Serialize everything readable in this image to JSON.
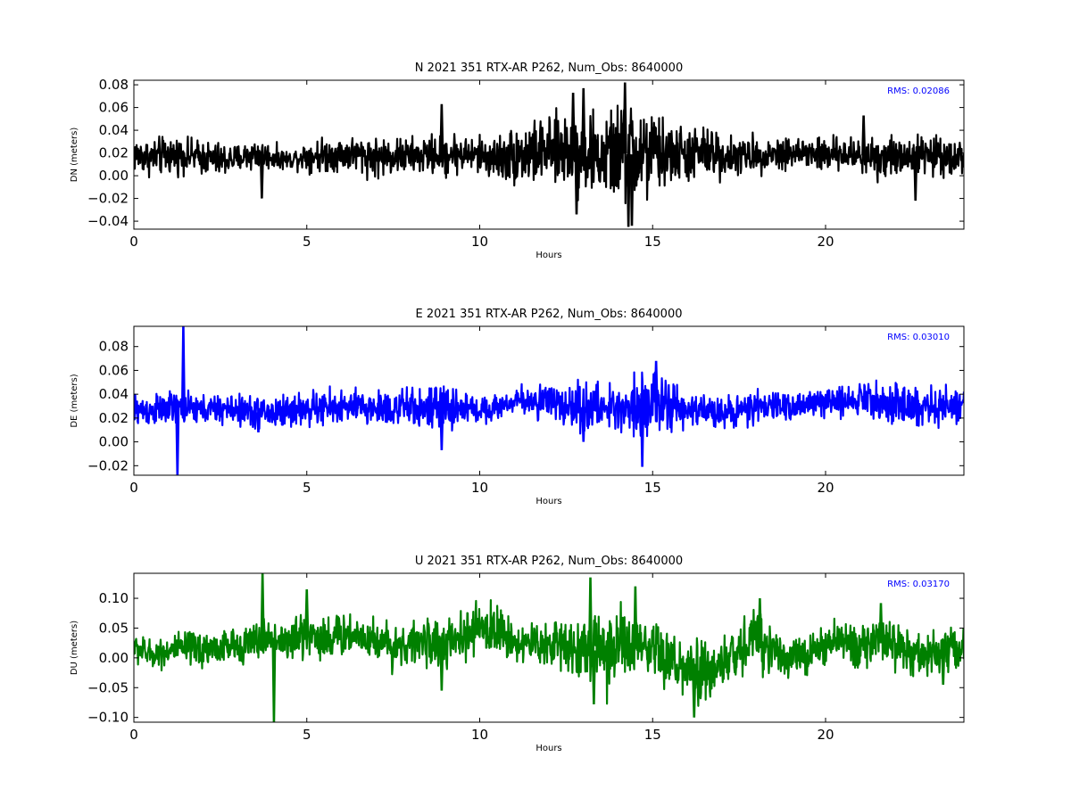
{
  "chart_data": [
    {
      "type": "line",
      "title": "N 2021 351 RTX-AR  P262, Num_Obs: 8640000",
      "xlabel": "Hours",
      "ylabel": "DN (meters)",
      "xlim": [
        0,
        24
      ],
      "ylim": [
        -0.047,
        0.084
      ],
      "xticks": [
        0,
        5,
        10,
        15,
        20
      ],
      "xtick_labels": [
        "0",
        "5",
        "10",
        "15",
        "20"
      ],
      "yticks": [
        -0.04,
        -0.02,
        0.0,
        0.02,
        0.04,
        0.06,
        0.08
      ],
      "ytick_labels": [
        "−0.04",
        "−0.02",
        "0.00",
        "0.02",
        "0.04",
        "0.06",
        "0.08"
      ],
      "grid": false,
      "annotation": {
        "text": "RMS:  0.02086",
        "color": "#0000ff",
        "placement": "top-right"
      },
      "series_color": "#000000",
      "series_envelope": {
        "hours": [
          0,
          0.5,
          1,
          1.5,
          2,
          2.5,
          3,
          3.5,
          4,
          4.5,
          5,
          5.5,
          6,
          6.5,
          7,
          7.5,
          8,
          8.5,
          9,
          9.5,
          10,
          10.5,
          11,
          11.5,
          12,
          12.5,
          13,
          13.5,
          14,
          14.5,
          15,
          15.5,
          16,
          16.5,
          17,
          17.5,
          18,
          18.5,
          19,
          19.5,
          20,
          20.5,
          21,
          21.5,
          22,
          22.5,
          23,
          23.5,
          24
        ],
        "max": [
          0.035,
          0.033,
          0.036,
          0.033,
          0.032,
          0.03,
          0.028,
          0.034,
          0.028,
          0.022,
          0.032,
          0.034,
          0.035,
          0.036,
          0.035,
          0.035,
          0.034,
          0.035,
          0.042,
          0.036,
          0.035,
          0.036,
          0.046,
          0.05,
          0.05,
          0.06,
          0.062,
          0.05,
          0.065,
          0.072,
          0.058,
          0.048,
          0.045,
          0.045,
          0.04,
          0.034,
          0.035,
          0.035,
          0.036,
          0.038,
          0.035,
          0.032,
          0.036,
          0.04,
          0.035,
          0.038,
          0.036,
          0.035,
          0.034
        ],
        "min": [
          0.002,
          -0.001,
          0.0,
          0.003,
          0.0,
          -0.003,
          0.002,
          0.004,
          0.005,
          0.006,
          0.004,
          0.002,
          0.004,
          0.002,
          -0.003,
          0.0,
          0.0,
          0.001,
          -0.003,
          0.002,
          0.0,
          -0.005,
          -0.01,
          -0.01,
          -0.008,
          -0.012,
          -0.02,
          -0.02,
          -0.025,
          -0.035,
          -0.02,
          -0.01,
          -0.008,
          -0.005,
          -0.003,
          0.0,
          0.002,
          0.004,
          0.005,
          0.0,
          0.002,
          0.005,
          0.0,
          -0.005,
          -0.003,
          0.0,
          0.0,
          0.0,
          0.0
        ]
      },
      "spikes": [
        {
          "hour": 3.7,
          "value": -0.02
        },
        {
          "hour": 8.9,
          "value": 0.063
        },
        {
          "hour": 12.7,
          "value": 0.073
        },
        {
          "hour": 12.8,
          "value": -0.034
        },
        {
          "hour": 13.0,
          "value": 0.077
        },
        {
          "hour": 14.2,
          "value": 0.082
        },
        {
          "hour": 14.3,
          "value": -0.045
        },
        {
          "hour": 14.4,
          "value": -0.044
        },
        {
          "hour": 21.1,
          "value": 0.053
        },
        {
          "hour": 22.6,
          "value": -0.022
        }
      ]
    },
    {
      "type": "line",
      "title": "E 2021 351 RTX-AR  P262, Num_Obs: 8640000",
      "xlabel": "Hours",
      "ylabel": "DE (meters)",
      "xlim": [
        0,
        24
      ],
      "ylim": [
        -0.028,
        0.097
      ],
      "xticks": [
        0,
        5,
        10,
        15,
        20
      ],
      "xtick_labels": [
        "0",
        "5",
        "10",
        "15",
        "20"
      ],
      "yticks": [
        -0.02,
        0.0,
        0.02,
        0.04,
        0.06,
        0.08
      ],
      "ytick_labels": [
        "−0.02",
        "0.00",
        "0.02",
        "0.04",
        "0.06",
        "0.08"
      ],
      "grid": false,
      "annotation": {
        "text": "RMS:  0.03010",
        "color": "#0000ff",
        "placement": "top-right"
      },
      "series_color": "#0000ff",
      "series_envelope": {
        "hours": [
          0,
          0.5,
          1,
          1.5,
          2,
          2.5,
          3,
          3.5,
          4,
          4.5,
          5,
          5.5,
          6,
          6.5,
          7,
          7.5,
          8,
          8.5,
          9,
          9.5,
          10,
          10.5,
          11,
          11.5,
          12,
          12.5,
          13,
          13.5,
          14,
          14.5,
          15,
          15.5,
          16,
          16.5,
          17,
          17.5,
          18,
          18.5,
          19,
          19.5,
          20,
          20.5,
          21,
          21.5,
          22,
          22.5,
          23,
          23.5,
          24
        ],
        "max": [
          0.042,
          0.04,
          0.043,
          0.041,
          0.04,
          0.041,
          0.04,
          0.04,
          0.04,
          0.042,
          0.042,
          0.045,
          0.045,
          0.044,
          0.045,
          0.046,
          0.046,
          0.046,
          0.048,
          0.045,
          0.038,
          0.04,
          0.044,
          0.05,
          0.052,
          0.048,
          0.05,
          0.048,
          0.05,
          0.06,
          0.062,
          0.05,
          0.04,
          0.04,
          0.038,
          0.04,
          0.042,
          0.044,
          0.042,
          0.043,
          0.046,
          0.048,
          0.05,
          0.052,
          0.05,
          0.048,
          0.048,
          0.046,
          0.048
        ],
        "min": [
          0.012,
          0.012,
          0.013,
          0.014,
          0.014,
          0.014,
          0.013,
          0.01,
          0.008,
          0.012,
          0.012,
          0.012,
          0.014,
          0.013,
          0.012,
          0.01,
          0.011,
          0.01,
          0.008,
          0.012,
          0.015,
          0.018,
          0.024,
          0.02,
          0.012,
          0.012,
          0.008,
          0.01,
          0.006,
          0.004,
          0.006,
          0.008,
          0.012,
          0.012,
          0.013,
          0.012,
          0.014,
          0.016,
          0.018,
          0.02,
          0.02,
          0.022,
          0.024,
          0.02,
          0.014,
          0.008,
          0.01,
          0.012,
          0.012
        ]
      },
      "spikes": [
        {
          "hour": 1.26,
          "value": -0.028
        },
        {
          "hour": 1.43,
          "value": 0.097
        },
        {
          "hour": 3.6,
          "value": 0.008
        },
        {
          "hour": 8.9,
          "value": -0.007
        },
        {
          "hour": 13.0,
          "value": 0.0
        },
        {
          "hour": 14.7,
          "value": -0.021
        },
        {
          "hour": 15.1,
          "value": 0.068
        }
      ]
    },
    {
      "type": "line",
      "title": "U 2021 351 RTX-AR  P262, Num_Obs: 8640000",
      "xlabel": "Hours",
      "ylabel": "DU (meters)",
      "xlim": [
        0,
        24
      ],
      "ylim": [
        -0.108,
        0.142
      ],
      "xticks": [
        0,
        5,
        10,
        15,
        20
      ],
      "xtick_labels": [
        "0",
        "5",
        "10",
        "15",
        "20"
      ],
      "yticks": [
        -0.1,
        -0.05,
        0.0,
        0.05,
        0.1
      ],
      "ytick_labels": [
        "−0.10",
        "−0.05",
        "0.00",
        "0.05",
        "0.10"
      ],
      "grid": false,
      "annotation": {
        "text": "RMS:  0.03170",
        "color": "#0000ff",
        "placement": "top-right"
      },
      "series_color": "#008000",
      "series_envelope": {
        "hours": [
          0,
          0.5,
          1,
          1.5,
          2,
          2.5,
          3,
          3.5,
          4,
          4.5,
          5,
          5.5,
          6,
          6.5,
          7,
          7.5,
          8,
          8.5,
          9,
          9.5,
          10,
          10.5,
          11,
          11.5,
          12,
          12.5,
          13,
          13.5,
          14,
          14.5,
          15,
          15.5,
          16,
          16.5,
          17,
          17.5,
          18,
          18.5,
          19,
          19.5,
          20,
          20.5,
          21,
          21.5,
          22,
          22.5,
          23,
          23.5,
          24
        ],
        "max": [
          0.045,
          0.03,
          0.04,
          0.045,
          0.05,
          0.05,
          0.05,
          0.06,
          0.07,
          0.06,
          0.09,
          0.075,
          0.075,
          0.08,
          0.07,
          0.06,
          0.06,
          0.065,
          0.06,
          0.075,
          0.1,
          0.09,
          0.065,
          0.06,
          0.065,
          0.075,
          0.075,
          0.085,
          0.095,
          0.07,
          0.06,
          0.05,
          0.03,
          0.03,
          0.04,
          0.06,
          0.09,
          0.06,
          0.035,
          0.04,
          0.06,
          0.065,
          0.06,
          0.07,
          0.065,
          0.045,
          0.05,
          0.055,
          0.05
        ],
        "min": [
          -0.01,
          -0.02,
          -0.015,
          -0.015,
          -0.02,
          -0.015,
          -0.01,
          -0.005,
          0.0,
          -0.01,
          -0.005,
          -0.01,
          0.0,
          0.0,
          -0.01,
          -0.02,
          -0.015,
          -0.01,
          -0.02,
          -0.01,
          0.0,
          0.005,
          -0.01,
          -0.015,
          -0.02,
          -0.025,
          -0.05,
          -0.06,
          -0.055,
          -0.04,
          -0.045,
          -0.06,
          -0.08,
          -0.09,
          -0.06,
          -0.04,
          -0.015,
          -0.03,
          -0.035,
          -0.03,
          -0.02,
          -0.01,
          -0.015,
          -0.02,
          -0.02,
          -0.03,
          -0.04,
          -0.025,
          -0.015
        ]
      },
      "spikes": [
        {
          "hour": 3.72,
          "value": 0.142
        },
        {
          "hour": 4.05,
          "value": -0.108
        },
        {
          "hour": 5.0,
          "value": 0.115
        },
        {
          "hour": 8.9,
          "value": -0.055
        },
        {
          "hour": 13.2,
          "value": 0.135
        },
        {
          "hour": 13.3,
          "value": -0.078
        },
        {
          "hour": 14.5,
          "value": 0.12
        },
        {
          "hour": 16.2,
          "value": -0.1
        },
        {
          "hour": 18.1,
          "value": 0.1
        },
        {
          "hour": 21.6,
          "value": 0.092
        },
        {
          "hour": 23.4,
          "value": -0.045
        }
      ]
    }
  ]
}
